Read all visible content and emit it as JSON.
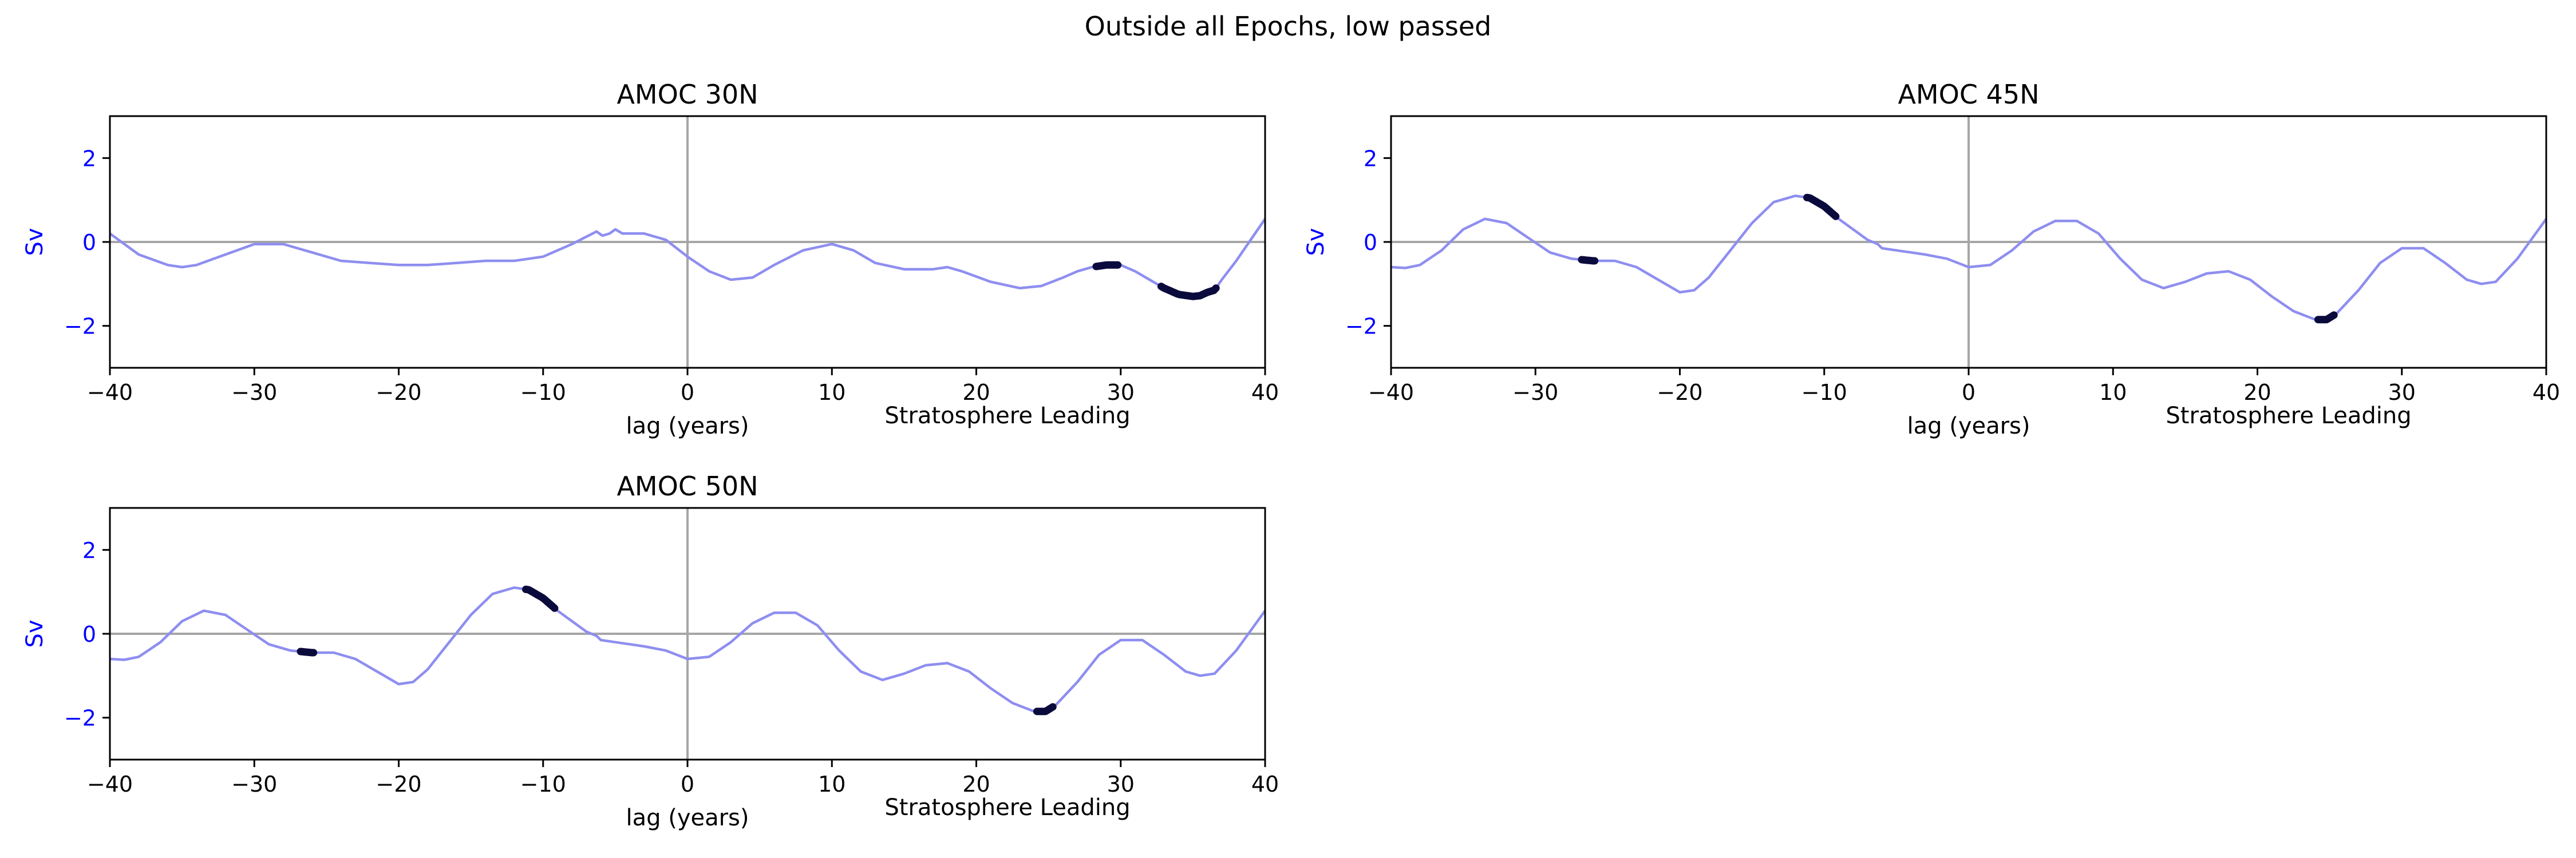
{
  "figure": {
    "suptitle": "Outside all Epochs, low passed"
  },
  "colors": {
    "series_line": "#8e8ef0",
    "significant": "#0a0a3c",
    "ylabel": "#0000ff",
    "reference_line": "#a6a6a6",
    "axes": "#000000"
  },
  "chart_data": [
    {
      "type": "line",
      "title": "AMOC 30N",
      "xlabel": "lag (years)",
      "annotation": "Stratosphere Leading",
      "ylabel": "Sv",
      "xlim": [
        -40,
        40
      ],
      "ylim": [
        -3,
        3
      ],
      "xticks": [
        -40,
        -30,
        -20,
        -10,
        0,
        10,
        20,
        30,
        40
      ],
      "yticks": [
        -2,
        0,
        2
      ],
      "reference_lines": {
        "x": 0,
        "y": 0
      },
      "grid": false,
      "series": [
        {
          "x": [
            -40,
            -38,
            -36,
            -35,
            -34,
            -32,
            -30,
            -28,
            -26,
            -24,
            -22,
            -20,
            -18,
            -16,
            -14,
            -12,
            -10,
            -8,
            -6.3,
            -5.9,
            -5.4,
            -5,
            -4.5,
            -3,
            -1.5,
            0,
            1.5,
            3,
            4.5,
            6,
            8,
            10,
            11.5,
            13,
            15,
            17,
            18,
            19,
            21,
            23,
            24.5,
            26,
            27,
            28,
            29,
            30,
            31,
            32,
            33,
            34,
            35,
            35.5,
            36,
            36.5,
            37,
            38,
            39,
            40
          ],
          "y": [
            0.2,
            -0.3,
            -0.55,
            -0.6,
            -0.55,
            -0.3,
            -0.05,
            -0.05,
            -0.25,
            -0.45,
            -0.5,
            -0.55,
            -0.55,
            -0.5,
            -0.45,
            -0.45,
            -0.35,
            -0.05,
            0.25,
            0.15,
            0.2,
            0.3,
            0.2,
            0.2,
            0.05,
            -0.35,
            -0.7,
            -0.9,
            -0.85,
            -0.55,
            -0.2,
            -0.05,
            -0.2,
            -0.5,
            -0.65,
            -0.65,
            -0.6,
            -0.7,
            -0.95,
            -1.1,
            -1.05,
            -0.85,
            -0.7,
            -0.6,
            -0.55,
            -0.55,
            -0.7,
            -0.9,
            -1.1,
            -1.25,
            -1.3,
            -1.28,
            -1.2,
            -1.15,
            -0.9,
            -0.45,
            0.05,
            0.55
          ]
        }
      ],
      "significant_ranges": [
        [
          28.3,
          29.8
        ],
        [
          32.8,
          36.6
        ]
      ]
    },
    {
      "type": "line",
      "title": "AMOC 45N",
      "xlabel": "lag (years)",
      "annotation": "Stratosphere Leading",
      "ylabel": "Sv",
      "xlim": [
        -40,
        40
      ],
      "ylim": [
        -3,
        3
      ],
      "xticks": [
        -40,
        -30,
        -20,
        -10,
        0,
        10,
        20,
        30,
        40
      ],
      "yticks": [
        -2,
        0,
        2
      ],
      "reference_lines": {
        "x": 0,
        "y": 0
      },
      "grid": false,
      "series": [
        {
          "x": [
            -40,
            -39,
            -38,
            -36.5,
            -35,
            -33.5,
            -32,
            -30.5,
            -29,
            -27.5,
            -26,
            -24.5,
            -23,
            -21.5,
            -20,
            -19,
            -18,
            -16.5,
            -15,
            -13.5,
            -12,
            -11,
            -10,
            -9,
            -8,
            -7,
            -6.3,
            -6,
            -5,
            -4,
            -3,
            -1.5,
            0,
            1.5,
            3,
            4.5,
            6,
            7.5,
            9,
            10.5,
            12,
            13.5,
            15,
            16.5,
            18,
            19.5,
            21,
            22.5,
            24,
            24.8,
            25.5,
            27,
            28.5,
            30,
            31.5,
            33,
            34.5,
            35.5,
            36.5,
            38,
            40
          ],
          "y": [
            -0.6,
            -0.62,
            -0.55,
            -0.2,
            0.3,
            0.55,
            0.45,
            0.1,
            -0.25,
            -0.4,
            -0.45,
            -0.45,
            -0.6,
            -0.9,
            -1.2,
            -1.15,
            -0.85,
            -0.2,
            0.45,
            0.95,
            1.1,
            1.05,
            0.85,
            0.55,
            0.3,
            0.05,
            -0.05,
            -0.15,
            -0.2,
            -0.25,
            -0.3,
            -0.4,
            -0.6,
            -0.55,
            -0.2,
            0.25,
            0.5,
            0.5,
            0.2,
            -0.4,
            -0.9,
            -1.1,
            -0.95,
            -0.75,
            -0.7,
            -0.9,
            -1.3,
            -1.65,
            -1.85,
            -1.85,
            -1.7,
            -1.15,
            -0.5,
            -0.15,
            -0.15,
            -0.5,
            -0.9,
            -1.0,
            -0.95,
            -0.4,
            0.55
          ]
        }
      ],
      "significant_ranges": [
        [
          -26.8,
          -25.9
        ],
        [
          -11.2,
          -9.2
        ],
        [
          24.2,
          25.3
        ]
      ]
    },
    {
      "type": "line",
      "title": "AMOC 50N",
      "xlabel": "lag (years)",
      "annotation": "Stratosphere Leading",
      "ylabel": "Sv",
      "xlim": [
        -40,
        40
      ],
      "ylim": [
        -3,
        3
      ],
      "xticks": [
        -40,
        -30,
        -20,
        -10,
        0,
        10,
        20,
        30,
        40
      ],
      "yticks": [
        -2,
        0,
        2
      ],
      "reference_lines": {
        "x": 0,
        "y": 0
      },
      "grid": false,
      "series": [
        {
          "x": [
            -40,
            -39,
            -38,
            -36.5,
            -35,
            -33.5,
            -32,
            -30.5,
            -29,
            -27.5,
            -26,
            -24.5,
            -23,
            -21.5,
            -20,
            -19,
            -18,
            -16.5,
            -15,
            -13.5,
            -12,
            -11,
            -10,
            -9,
            -8,
            -7,
            -6.3,
            -6,
            -5,
            -4,
            -3,
            -1.5,
            0,
            1.5,
            3,
            4.5,
            6,
            7.5,
            9,
            10.5,
            12,
            13.5,
            15,
            16.5,
            18,
            19.5,
            21,
            22.5,
            24,
            24.8,
            25.5,
            27,
            28.5,
            30,
            31.5,
            33,
            34.5,
            35.5,
            36.5,
            38,
            40
          ],
          "y": [
            -0.6,
            -0.62,
            -0.55,
            -0.2,
            0.3,
            0.55,
            0.45,
            0.1,
            -0.25,
            -0.4,
            -0.45,
            -0.45,
            -0.6,
            -0.9,
            -1.2,
            -1.15,
            -0.85,
            -0.2,
            0.45,
            0.95,
            1.1,
            1.05,
            0.85,
            0.55,
            0.3,
            0.05,
            -0.05,
            -0.15,
            -0.2,
            -0.25,
            -0.3,
            -0.4,
            -0.6,
            -0.55,
            -0.2,
            0.25,
            0.5,
            0.5,
            0.2,
            -0.4,
            -0.9,
            -1.1,
            -0.95,
            -0.75,
            -0.7,
            -0.9,
            -1.3,
            -1.65,
            -1.85,
            -1.85,
            -1.7,
            -1.15,
            -0.5,
            -0.15,
            -0.15,
            -0.5,
            -0.9,
            -1.0,
            -0.95,
            -0.4,
            0.55
          ]
        }
      ],
      "significant_ranges": [
        [
          -26.8,
          -25.9
        ],
        [
          -11.2,
          -9.2
        ],
        [
          24.2,
          25.3
        ]
      ]
    }
  ]
}
